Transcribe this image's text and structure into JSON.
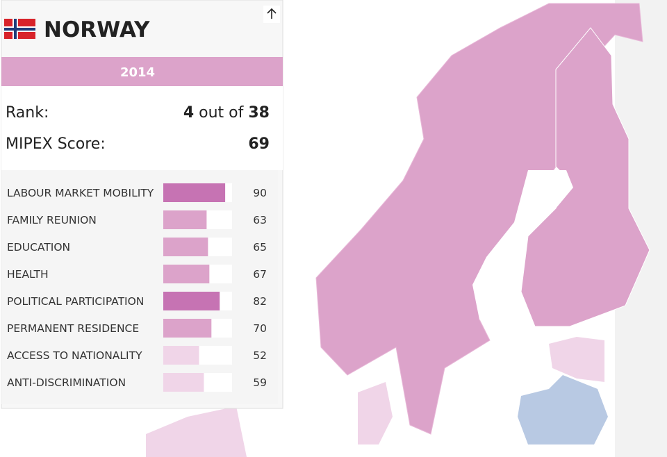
{
  "header": {
    "country": "NORWAY",
    "year": "2014"
  },
  "summary": {
    "rank_label": "Rank:",
    "rank": 4,
    "rank_connector": "out of",
    "rank_total": 38,
    "score_label": "MIPEX Score:",
    "score": 69
  },
  "indicators": {
    "xlim": [
      0,
      100
    ],
    "rows": [
      {
        "name": "LABOUR MARKET MOBILITY",
        "value": 90,
        "color": "#c673b3"
      },
      {
        "name": "FAMILY REUNION",
        "value": 63,
        "color": "#dca3ca"
      },
      {
        "name": "EDUCATION",
        "value": 65,
        "color": "#dca3ca"
      },
      {
        "name": "HEALTH",
        "value": 67,
        "color": "#dca3ca"
      },
      {
        "name": "POLITICAL PARTICIPATION",
        "value": 82,
        "color": "#c673b3"
      },
      {
        "name": "PERMANENT RESIDENCE",
        "value": 70,
        "color": "#dca3ca"
      },
      {
        "name": "ACCESS TO NATIONALITY",
        "value": 52,
        "color": "#f0d5e8"
      },
      {
        "name": "ANTI-DISCRIMINATION",
        "value": 59,
        "color": "#f0d5e8"
      }
    ]
  }
}
